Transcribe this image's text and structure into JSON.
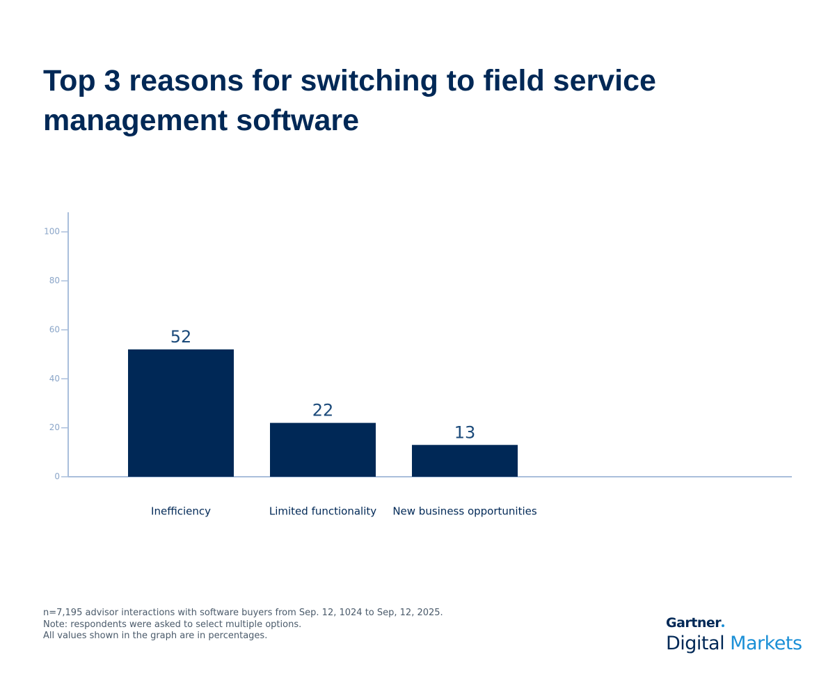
{
  "chart_data": {
    "type": "bar",
    "title": "Top 3 reasons for switching to field service management software",
    "categories": [
      "Inefficiency",
      "Limited functionality",
      "New business opportunities"
    ],
    "values": [
      52,
      22,
      13
    ],
    "color": "#002856",
    "ylim": [
      0,
      108
    ],
    "yticks": [
      0,
      20,
      40,
      60,
      80,
      100
    ],
    "grid": false,
    "notes": [
      "n=7,195 advisor interactions with software buyers from Sep. 12, 1024 to Sep, 12, 2025.",
      "Note: respondents were asked to select multiple options.",
      "All values shown in the graph are in percentages."
    ]
  },
  "logo": {
    "brand": "Gartner",
    "line1": "Digital",
    "line2": "Markets"
  }
}
